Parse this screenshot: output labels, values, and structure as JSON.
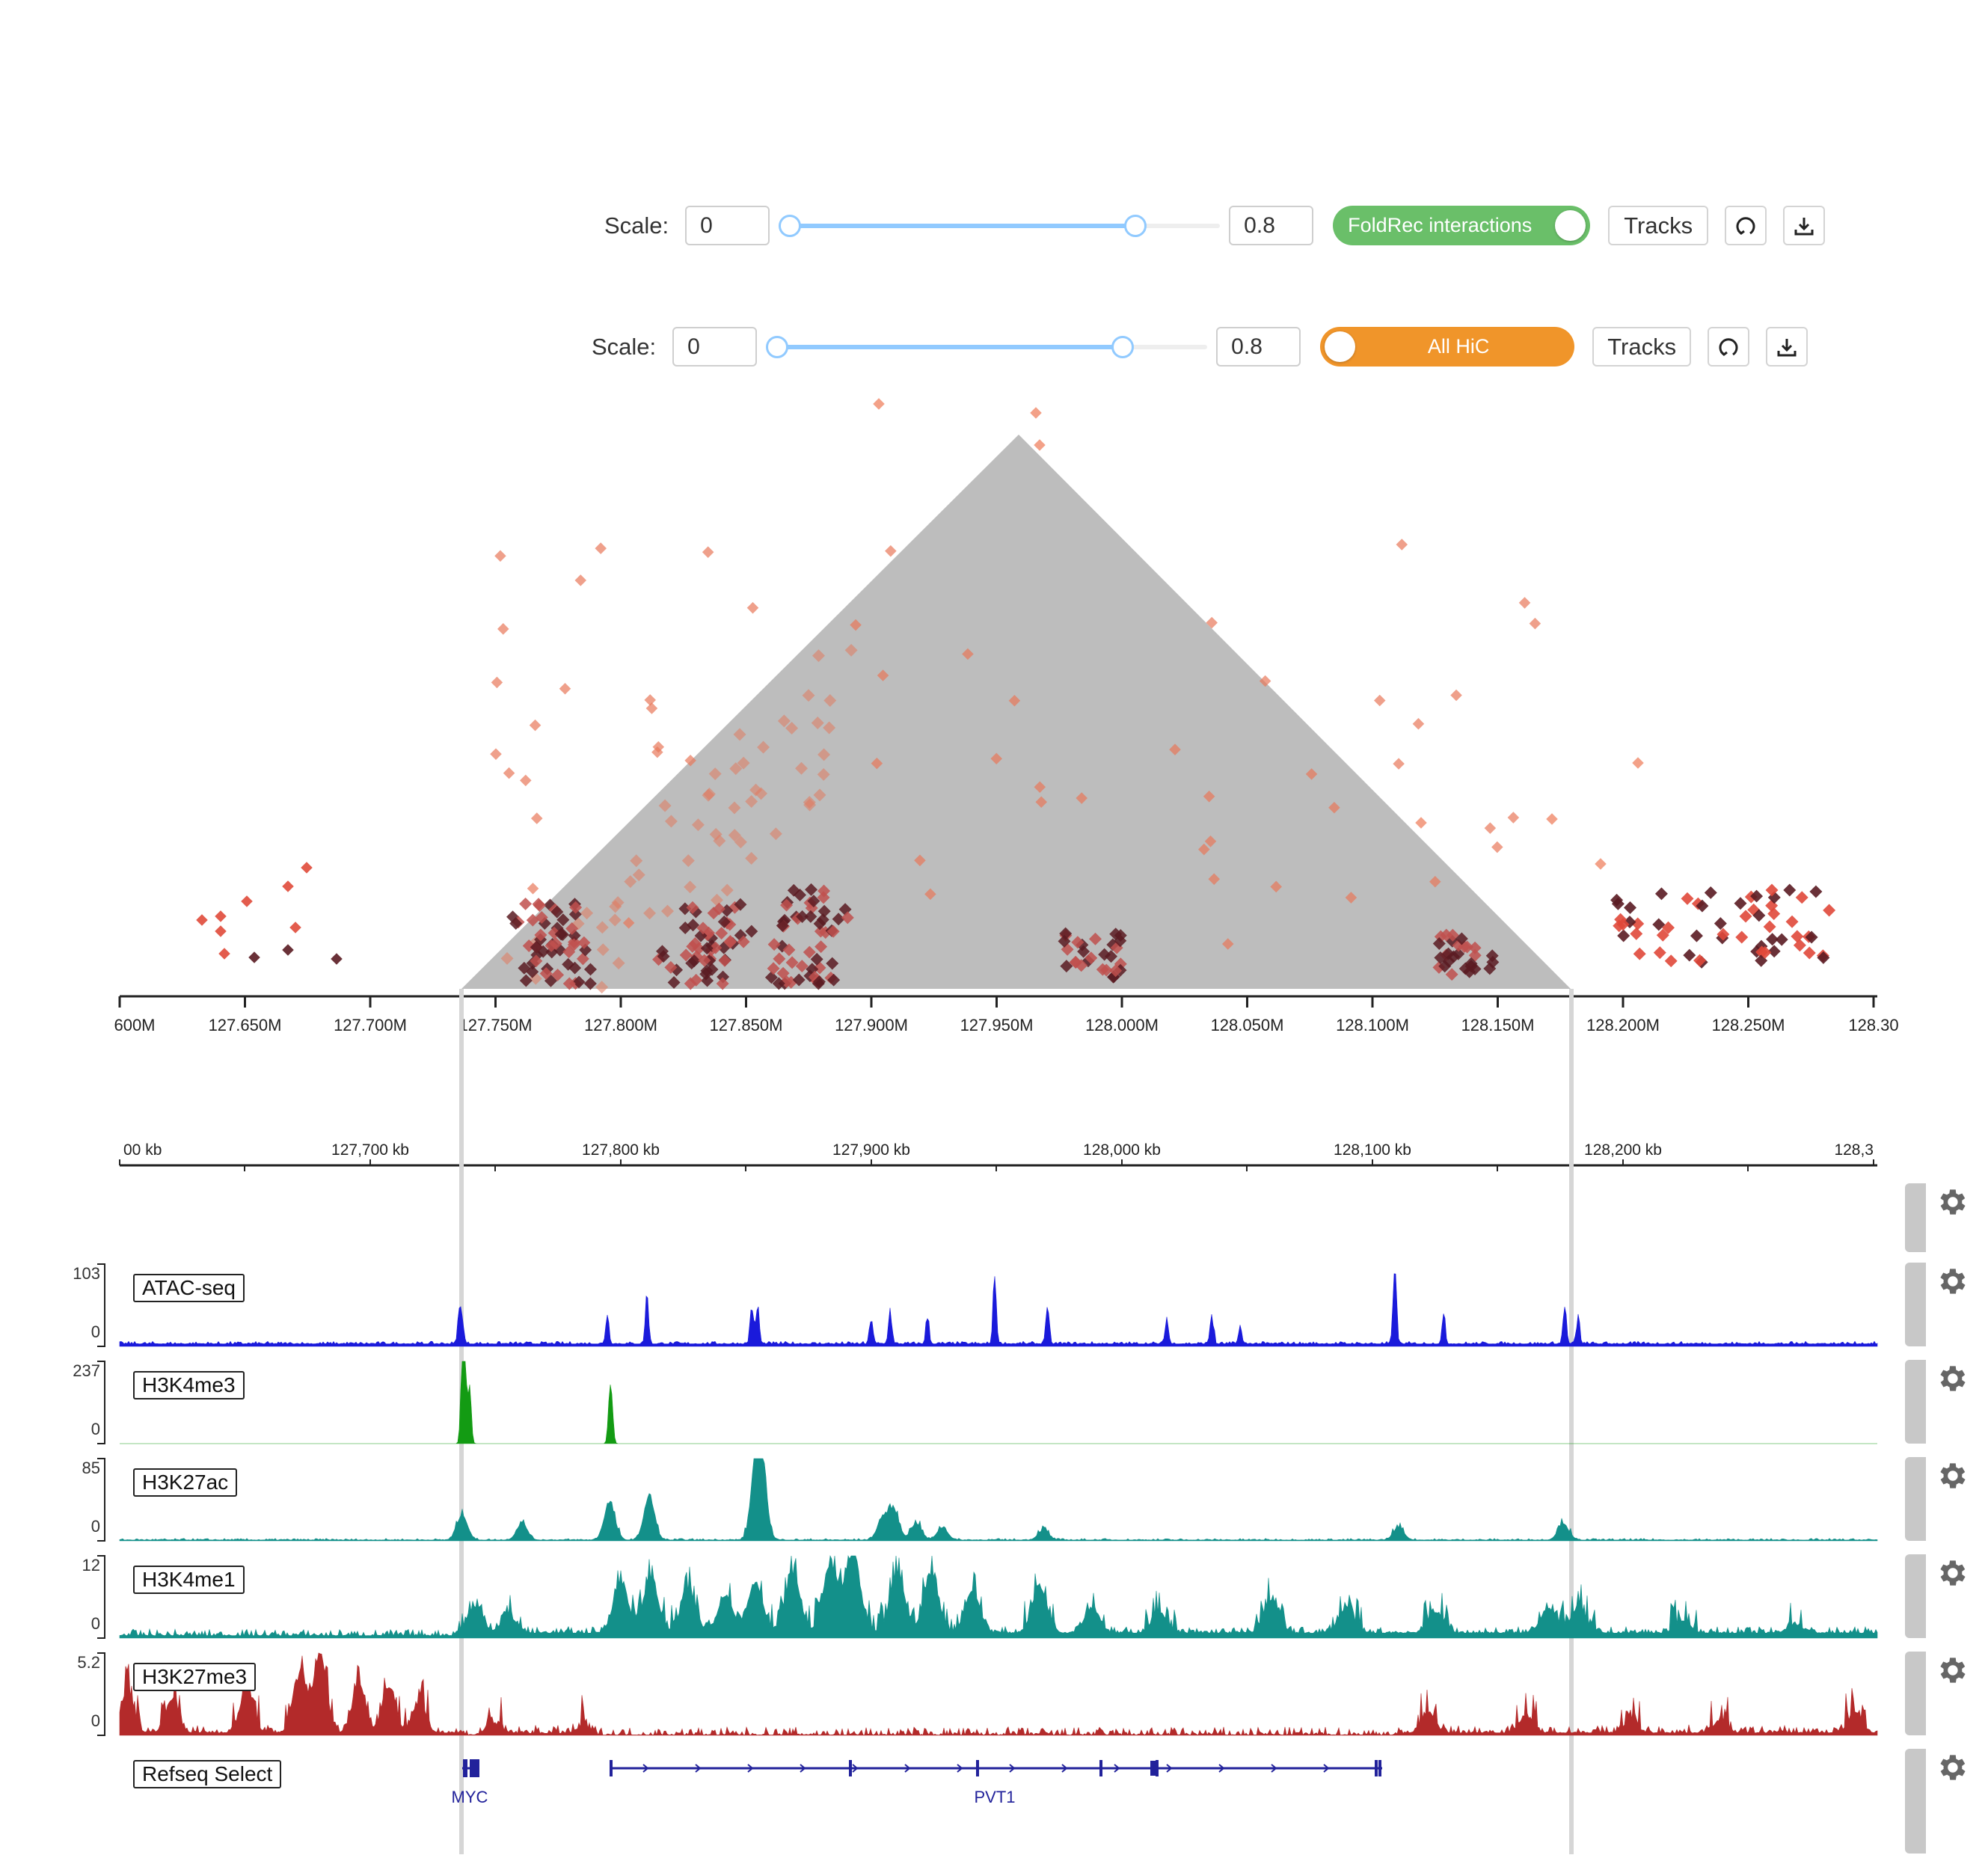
{
  "hic_controls": [
    {
      "scale_label": "Scale:",
      "min": "0",
      "max": "0.8",
      "slider_low": 0,
      "slider_high": 0.8,
      "toggle_label": "FoldRec interactions",
      "toggle_color": "#6abf69",
      "toggle_on": true,
      "tracks_label": "Tracks"
    },
    {
      "scale_label": "Scale:",
      "min": "0",
      "max": "0.8",
      "slider_low": 0,
      "slider_high": 0.8,
      "toggle_label": "All HiC",
      "toggle_color": "#f0952a",
      "toggle_on": false,
      "tracks_label": "Tracks"
    }
  ],
  "icons": {
    "reset": "reset-icon",
    "download": "download-icon",
    "settings": "gear-icon"
  },
  "hic_axis": {
    "ticks": [
      "600M",
      "127.650M",
      "127.700M",
      "127.750M",
      "127.800M",
      "127.850M",
      "127.900M",
      "127.950M",
      "128.000M",
      "128.050M",
      "128.100M",
      "128.150M",
      "128.200M",
      "128.250M",
      "128.30"
    ]
  },
  "genome_ruler": {
    "ticks": [
      "00 kb",
      "127,700 kb",
      "127,800 kb",
      "127,900 kb",
      "128,000 kb",
      "128,100 kb",
      "128,200 kb",
      "128,3"
    ]
  },
  "tracks": [
    {
      "name": "ATAC-seq",
      "max": "103",
      "min": "0",
      "color": "#1a1adb"
    },
    {
      "name": "H3K4me3",
      "max": "237",
      "min": "0",
      "color": "#139b13"
    },
    {
      "name": "H3K27ac",
      "max": "85",
      "min": "0",
      "color": "#13908a"
    },
    {
      "name": "H3K4me1",
      "max": "12",
      "min": "0",
      "color": "#13908a"
    },
    {
      "name": "H3K27me3",
      "max": "5.2",
      "min": "0",
      "color": "#b32a2a"
    },
    {
      "name": "Refseq Select",
      "color": "#22229b"
    }
  ],
  "genes": [
    {
      "name": "MYC"
    },
    {
      "name": "PVT1"
    }
  ]
}
